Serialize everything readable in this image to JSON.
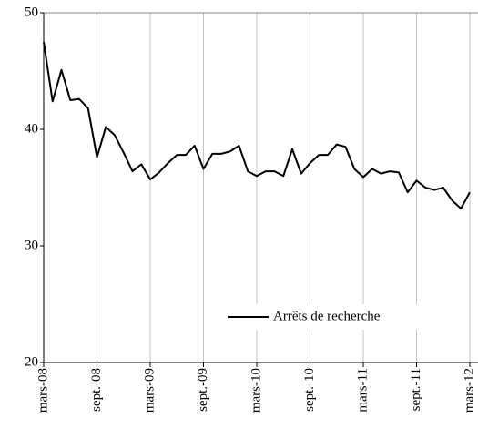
{
  "chart_data": {
    "type": "line",
    "categories": [
      "mars-08",
      null,
      null,
      null,
      null,
      null,
      "sept.-08",
      null,
      null,
      null,
      null,
      null,
      "mars-09",
      null,
      null,
      null,
      null,
      null,
      "sept.-09",
      null,
      null,
      null,
      null,
      null,
      "mars-10",
      null,
      null,
      null,
      null,
      null,
      "sept.-10",
      null,
      null,
      null,
      null,
      null,
      "mars-11",
      null,
      null,
      null,
      null,
      null,
      "sept.-11",
      null,
      null,
      null,
      null,
      null,
      "mars-12"
    ],
    "series": [
      {
        "name": "Arrêts de recherche",
        "color": "#000000",
        "values": [
          47.5,
          42.4,
          45.1,
          42.5,
          42.6,
          41.8,
          37.6,
          40.2,
          39.5,
          38.0,
          36.4,
          37.0,
          35.7,
          36.3,
          37.1,
          37.8,
          37.8,
          38.6,
          36.6,
          37.9,
          37.9,
          38.1,
          38.6,
          36.4,
          36.0,
          36.4,
          36.4,
          36.0,
          38.3,
          36.2,
          37.1,
          37.8,
          37.8,
          38.7,
          38.5,
          36.6,
          35.9,
          36.6,
          36.2,
          36.4,
          36.3,
          34.6,
          35.6,
          35.0,
          34.8,
          35.0,
          33.9,
          33.2,
          34.6
        ]
      }
    ],
    "ylim": [
      20,
      50
    ],
    "yticks": [
      20,
      30,
      40,
      50
    ],
    "grid": true
  }
}
